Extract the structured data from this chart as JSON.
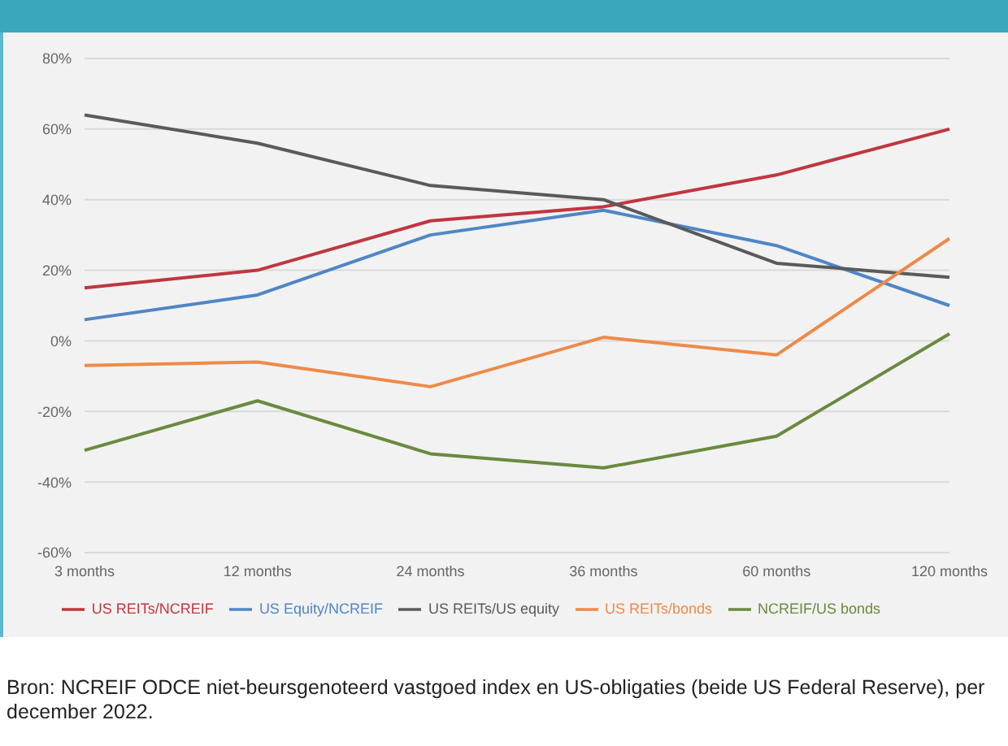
{
  "chart_data": {
    "type": "line",
    "categories": [
      "3 months",
      "12 months",
      "24 months",
      "36 months",
      "60 months",
      "120 months"
    ],
    "series": [
      {
        "name": "US REITs/NCREIF",
        "color": "#c0363f",
        "values": [
          15,
          20,
          34,
          38,
          47,
          60
        ]
      },
      {
        "name": "US Equity/NCREIF",
        "color": "#4f86c6",
        "values": [
          6,
          13,
          30,
          37,
          27,
          10
        ]
      },
      {
        "name": "US REITs/US equity",
        "color": "#5a5a5a",
        "values": [
          64,
          56,
          44,
          40,
          22,
          18
        ]
      },
      {
        "name": "US REITs/bonds",
        "color": "#ee8a4a",
        "values": [
          -7,
          -6,
          -13,
          1,
          -4,
          29
        ]
      },
      {
        "name": "NCREIF/US bonds",
        "color": "#6a8a3e",
        "values": [
          -31,
          -17,
          -32,
          -36,
          -27,
          2
        ]
      }
    ],
    "ylim": [
      -60,
      80
    ],
    "yticks": [
      {
        "value": -60,
        "label": "-60%"
      },
      {
        "value": -40,
        "label": "-40%"
      },
      {
        "value": -20,
        "label": "-20%"
      },
      {
        "value": 0,
        "label": "0%"
      },
      {
        "value": 20,
        "label": "20%"
      },
      {
        "value": 40,
        "label": "40%"
      },
      {
        "value": 60,
        "label": "60%"
      },
      {
        "value": 80,
        "label": "80%"
      }
    ],
    "grid": "y",
    "legend": "bottom",
    "marker": "none",
    "line_style": "solid",
    "annotations": [
      "Bron: NCREIF ODCE niet-beursgenoteerd vastgoed index en US-obligaties (beide US Federal Reserve), per december 2022."
    ]
  }
}
